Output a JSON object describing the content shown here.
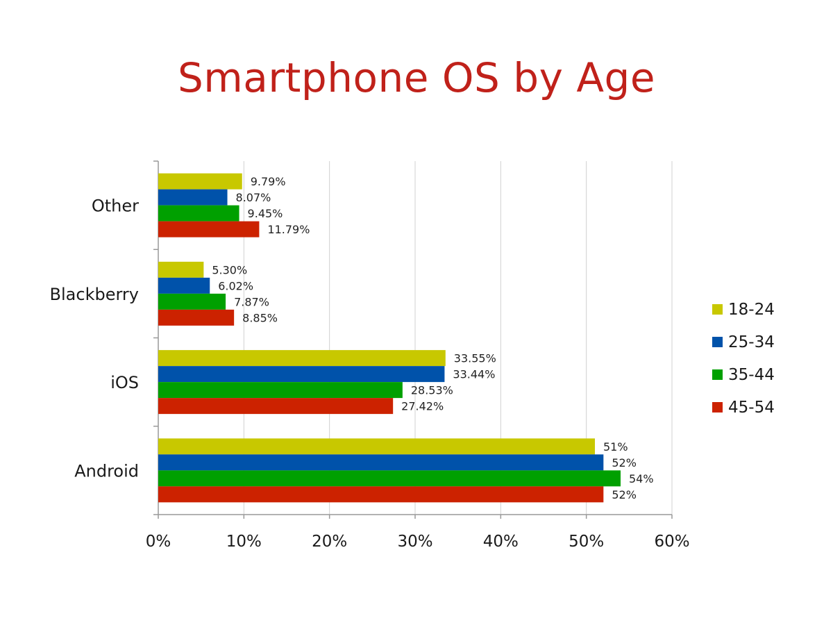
{
  "colors": {
    "title": "#c0211a",
    "series": [
      "#c8c800",
      "#0052aa",
      "#00a000",
      "#cc2200"
    ],
    "grid": "#d0d0d0",
    "axis": "#999999"
  },
  "chart_data": {
    "type": "bar",
    "orientation": "horizontal",
    "title": "Smartphone OS by Age",
    "xlabel": "",
    "ylabel": "",
    "xlim": [
      0,
      60
    ],
    "x_ticks": [
      "0%",
      "10%",
      "20%",
      "30%",
      "40%",
      "50%",
      "60%"
    ],
    "x_tick_values": [
      0,
      10,
      20,
      30,
      40,
      50,
      60
    ],
    "grid": true,
    "legend_position": "right",
    "categories": [
      "Other",
      "Blackberry",
      "iOS",
      "Android"
    ],
    "series": [
      {
        "name": "18-24",
        "values": [
          9.79,
          5.3,
          33.55,
          51
        ],
        "labels": [
          "9.79%",
          "5.30%",
          "33.55%",
          "51%"
        ]
      },
      {
        "name": "25-34",
        "values": [
          8.07,
          6.02,
          33.44,
          52
        ],
        "labels": [
          "8.07%",
          "6.02%",
          "33.44%",
          "52%"
        ]
      },
      {
        "name": "35-44",
        "values": [
          9.45,
          7.87,
          28.53,
          54
        ],
        "labels": [
          "9.45%",
          "7.87%",
          "28.53%",
          "54%"
        ]
      },
      {
        "name": "45-54",
        "values": [
          11.79,
          8.85,
          27.42,
          52
        ],
        "labels": [
          "11.79%",
          "8.85%",
          "27.42%",
          "52%"
        ]
      }
    ]
  }
}
